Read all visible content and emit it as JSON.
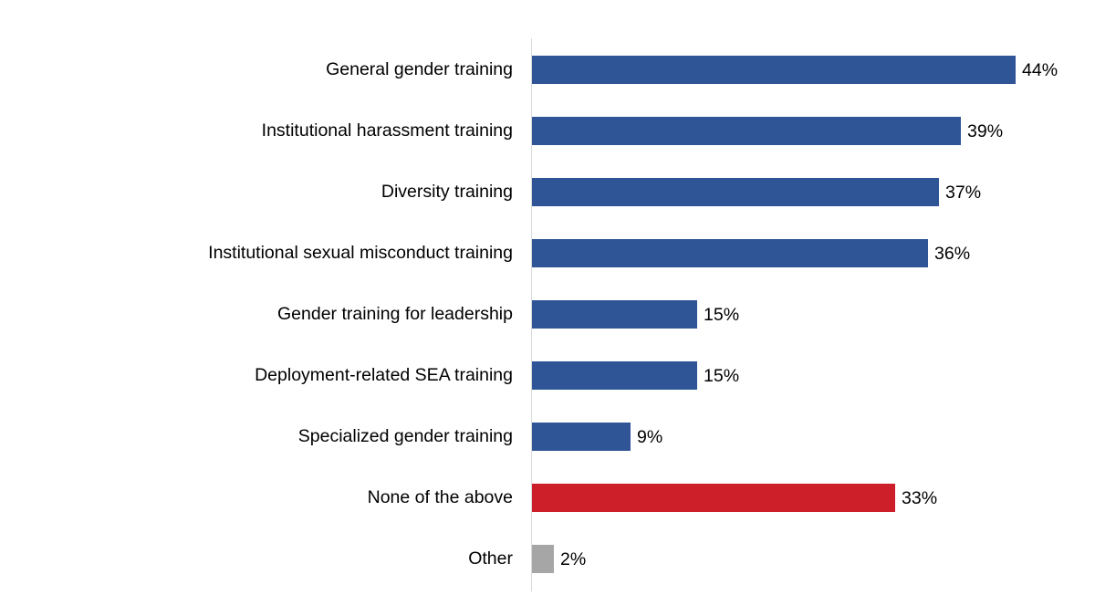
{
  "chart_data": {
    "type": "bar",
    "orientation": "horizontal",
    "title": "",
    "xlabel": "",
    "ylabel": "",
    "xlim": [
      0,
      44
    ],
    "grid": false,
    "legend": null,
    "categories": [
      "General gender training",
      "Institutional harassment training",
      "Diversity training",
      "Institutional sexual misconduct training",
      "Gender training for leadership",
      "Deployment-related SEA training",
      "Specialized gender training",
      "None of the above",
      "Other"
    ],
    "values": [
      44,
      39,
      37,
      36,
      15,
      15,
      9,
      33,
      2
    ],
    "value_labels": [
      "44%",
      "39%",
      "37%",
      "36%",
      "15%",
      "15%",
      "9%",
      "33%",
      "2%"
    ],
    "bar_colors": [
      "#2f5597",
      "#2f5597",
      "#2f5597",
      "#2f5597",
      "#2f5597",
      "#2f5597",
      "#2f5597",
      "#cc1f2a",
      "#a6a6a6"
    ]
  },
  "colors": {
    "primary": "#2f5597",
    "none": "#cc1f2a",
    "other": "#a6a6a6",
    "axis": "#d9d9d9"
  }
}
